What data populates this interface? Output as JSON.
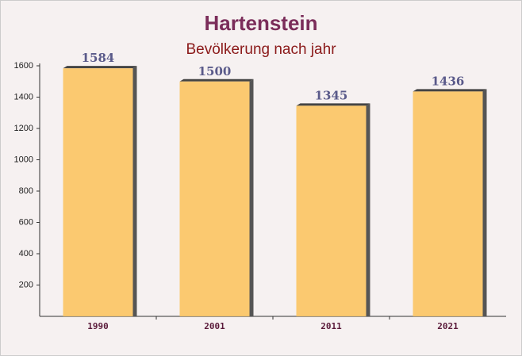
{
  "chart_data": {
    "type": "bar",
    "title": "Hartenstein",
    "subtitle": "Bevölkerung nach jahr",
    "categories": [
      "1990",
      "2001",
      "2011",
      "2021"
    ],
    "values": [
      1584,
      1500,
      1345,
      1436
    ],
    "color": "#fcc462",
    "ylim": [
      0,
      1600
    ],
    "yticks": [
      200,
      400,
      600,
      800,
      1000,
      1200,
      1400,
      1600
    ],
    "grid": false
  }
}
